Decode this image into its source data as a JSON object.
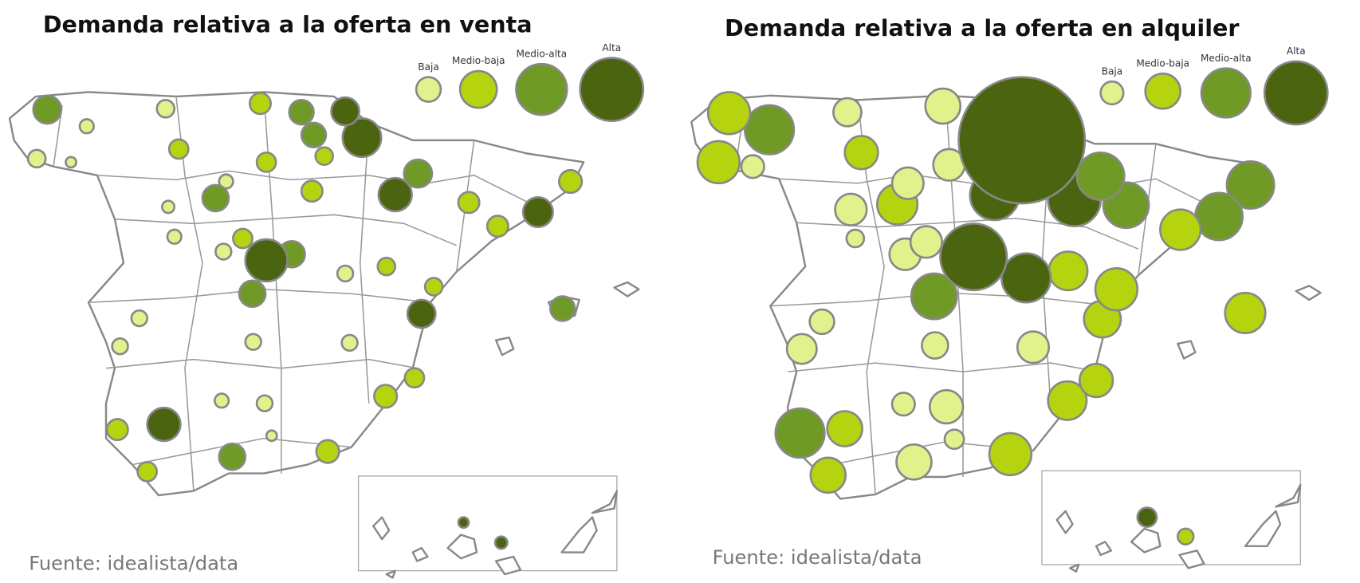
{
  "panels": [
    {
      "title": "Demanda relativa a la oferta en venta",
      "legend": [
        {
          "label": "Baja",
          "color": "#e1f28c"
        },
        {
          "label": "Medio-baja",
          "color": "#b5d30f"
        },
        {
          "label": "Medio-alta",
          "color": "#709a26"
        },
        {
          "label": "Alta",
          "color": "#4b6410"
        }
      ],
      "source": "Fuente: idealista/data"
    },
    {
      "title": "Demanda relativa a la oferta en alquiler",
      "legend": [
        {
          "label": "Baja",
          "color": "#e1f28c"
        },
        {
          "label": "Medio-baja",
          "color": "#b5d30f"
        },
        {
          "label": "Medio-alta",
          "color": "#709a26"
        },
        {
          "label": "Alta",
          "color": "#4b6410"
        }
      ],
      "source": "Fuente: idealista/data"
    }
  ]
}
